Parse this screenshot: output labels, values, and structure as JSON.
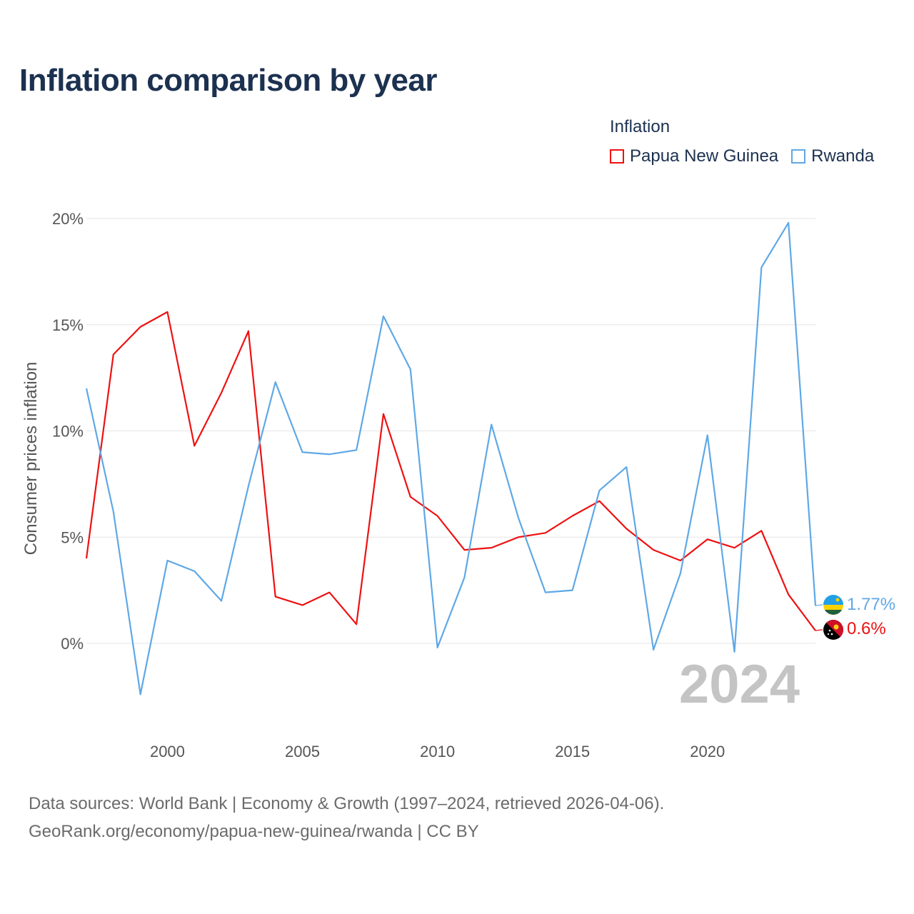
{
  "title": "Inflation comparison by year",
  "legend": {
    "title": "Inflation",
    "items": [
      {
        "name": "Papua New Guinea",
        "color": "#ee1111"
      },
      {
        "name": "Rwanda",
        "color": "#5fa8e6"
      }
    ]
  },
  "footer": {
    "line1": "Data sources: World Bank | Economy & Growth (1997–2024, retrieved 2026-04-06).",
    "line2": "GeoRank.org/economy/papua-new-guinea/rwanda | CC BY"
  },
  "chart_data": {
    "type": "line",
    "title": "Inflation comparison by year",
    "xlabel": "",
    "ylabel": "Consumer prices inflation",
    "x": [
      1997,
      1998,
      1999,
      2000,
      2001,
      2002,
      2003,
      2004,
      2005,
      2006,
      2007,
      2008,
      2009,
      2010,
      2011,
      2012,
      2013,
      2014,
      2015,
      2016,
      2017,
      2018,
      2019,
      2020,
      2021,
      2022,
      2023,
      2024
    ],
    "xlim": [
      1997,
      2024
    ],
    "ylim": [
      -5,
      20
    ],
    "x_ticks": [
      2000,
      2005,
      2010,
      2015,
      2020
    ],
    "x_tick_labels": [
      "2000",
      "2005",
      "2010",
      "2015",
      "2020"
    ],
    "y_ticks": [
      0,
      5,
      10,
      15,
      20
    ],
    "y_tick_labels": [
      "0%",
      "5%",
      "10%",
      "15%",
      "20%"
    ],
    "grid": true,
    "legend_position": "top-right",
    "watermark_year": "2024",
    "series": [
      {
        "name": "Papua New Guinea",
        "color": "#ee1111",
        "values": [
          4.0,
          13.6,
          14.9,
          15.6,
          9.3,
          11.8,
          14.7,
          2.2,
          1.8,
          2.4,
          0.9,
          10.8,
          6.9,
          6.0,
          4.4,
          4.5,
          5.0,
          5.2,
          6.0,
          6.7,
          5.4,
          4.4,
          3.9,
          4.9,
          4.5,
          5.3,
          2.3,
          0.6
        ],
        "end_label": "0.6%"
      },
      {
        "name": "Rwanda",
        "color": "#5fa8e6",
        "values": [
          12.0,
          6.2,
          -2.4,
          3.9,
          3.4,
          2.0,
          7.4,
          12.3,
          9.0,
          8.9,
          9.1,
          15.4,
          12.9,
          -0.2,
          3.1,
          10.3,
          5.9,
          2.4,
          2.5,
          7.2,
          8.3,
          -0.3,
          3.3,
          9.8,
          -0.4,
          17.7,
          19.8,
          1.77
        ],
        "end_label": "1.77%"
      }
    ]
  }
}
